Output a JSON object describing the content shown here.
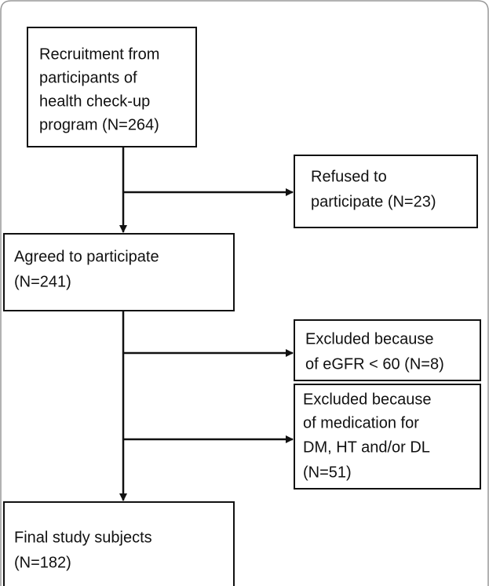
{
  "nodes": [
    {
      "lines": [
        "Recruitment from",
        "participants of",
        "health check-up",
        "program (N=264)"
      ]
    },
    {
      "lines": [
        "Refused to",
        "participate (N=23)"
      ]
    },
    {
      "lines": [
        "Agreed to participate",
        "(N=241)"
      ]
    },
    {
      "lines": [
        "Excluded because",
        "of eGFR < 60 (N=8)"
      ]
    },
    {
      "lines": [
        "Excluded because",
        "of medication for",
        "DM, HT and/or DL",
        "(N=51)"
      ]
    },
    {
      "lines": [
        "Final study subjects",
        "(N=182)"
      ]
    }
  ]
}
